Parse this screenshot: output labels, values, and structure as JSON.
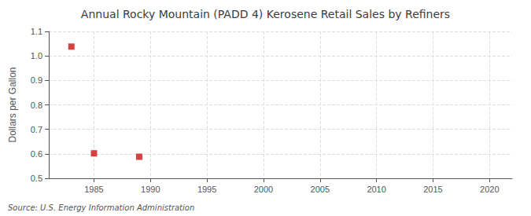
{
  "chart_data": {
    "type": "scatter",
    "title": "Annual Rocky Mountain (PADD 4) Kerosene Retail Sales by Refiners",
    "ylabel": "Dollars per Gallon",
    "source": "Source: U.S. Energy Information Administration",
    "x": [
      1983,
      1985,
      1989
    ],
    "values": [
      1.038,
      0.602,
      0.588
    ],
    "color": "#cc1111",
    "marker": "square",
    "xlim": [
      1981,
      2022
    ],
    "xticks": [
      1985,
      1990,
      1995,
      2000,
      2005,
      2010,
      2015,
      2020
    ],
    "ylim": [
      0.5,
      1.1
    ],
    "yticks": [
      0.5,
      0.6,
      0.7,
      0.8,
      0.9,
      {
        "value": 1.0,
        "label": "1.0"
      },
      1.1
    ],
    "grid": true
  }
}
